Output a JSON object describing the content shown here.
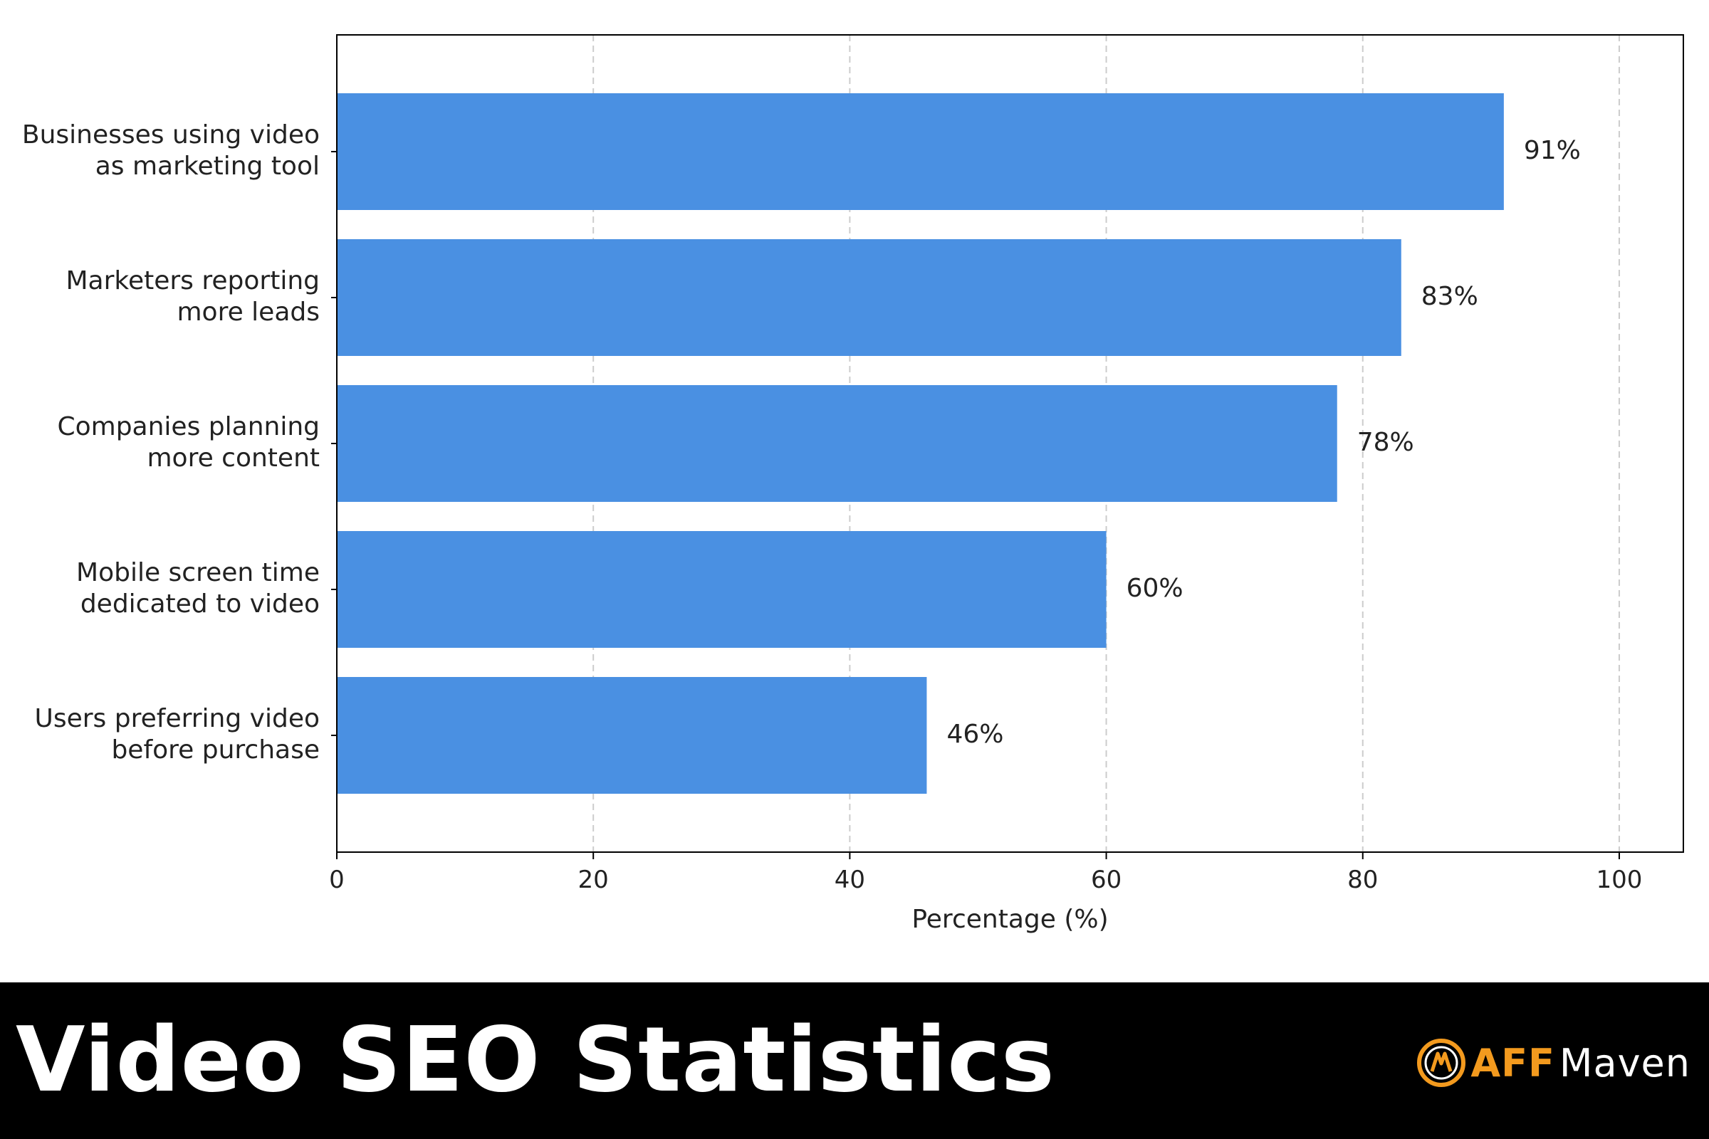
{
  "chart_data": {
    "type": "bar",
    "orientation": "horizontal",
    "categories": [
      [
        "Businesses using video",
        "as marketing tool"
      ],
      [
        "Marketers reporting",
        "more leads"
      ],
      [
        "Companies planning",
        "more content"
      ],
      [
        "Mobile screen time",
        "dedicated to video"
      ],
      [
        "Users preferring video",
        "before purchase"
      ]
    ],
    "values": [
      91,
      83,
      78,
      60,
      46
    ],
    "value_labels": [
      "91%",
      "83%",
      "78%",
      "60%",
      "46%"
    ],
    "xlabel": "Percentage (%)",
    "ylabel": "",
    "xlim": [
      0,
      105
    ],
    "xticks": [
      0,
      20,
      40,
      60,
      80,
      100
    ],
    "xtick_labels": [
      "0",
      "20",
      "40",
      "60",
      "80",
      "100"
    ],
    "grid": "vertical dashed",
    "bar_color": "#4A90E2"
  },
  "footer": {
    "title": "Video SEO Statistics",
    "brand_aff": "AFF",
    "brand_maven": "Maven",
    "brand_logo_icon": "am-monogram-icon",
    "accent_color": "#F39A1E",
    "background_color": "#000000"
  }
}
